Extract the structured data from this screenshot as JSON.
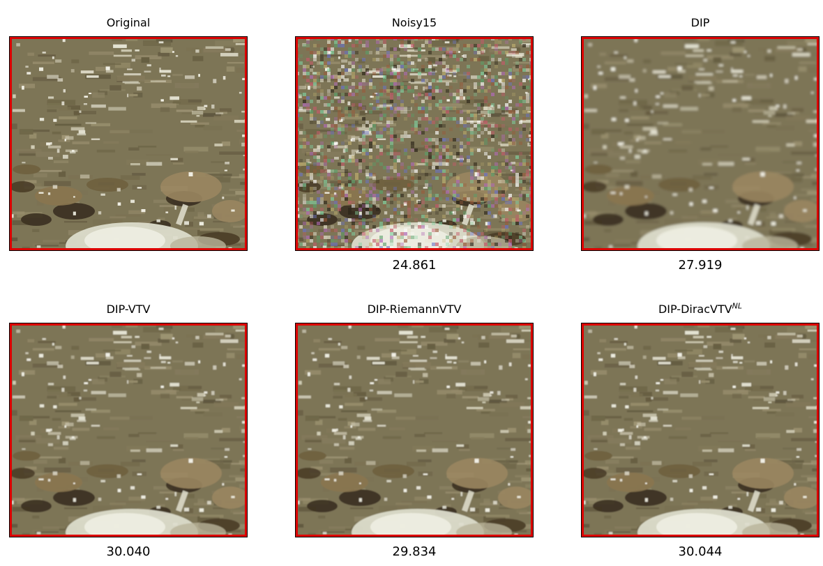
{
  "figure": {
    "panels": [
      {
        "title": "Original",
        "title_superscript": "",
        "psnr": "",
        "noise": "none",
        "blur": "sharp"
      },
      {
        "title": "Noisy15",
        "title_superscript": "",
        "psnr": "24.861",
        "noise": "heavy",
        "blur": "sharp"
      },
      {
        "title": "DIP",
        "title_superscript": "",
        "psnr": "27.919",
        "noise": "none",
        "blur": "smooth"
      },
      {
        "title": "DIP-VTV",
        "title_superscript": "",
        "psnr": "30.040",
        "noise": "none",
        "blur": "slight"
      },
      {
        "title": "DIP-RiemannVTV",
        "title_superscript": "",
        "psnr": "29.834",
        "noise": "none",
        "blur": "slight"
      },
      {
        "title": "DIP-DiracVTV",
        "title_superscript": "NL",
        "psnr": "30.044",
        "noise": "none",
        "blur": "slight"
      }
    ],
    "colors": {
      "border": "#dd0000",
      "frame": "#000000",
      "water_base": "#7d7456",
      "foam": "#e6e4d4",
      "rock_dark": "#3b3020",
      "rock_tan": "#9a8660"
    }
  }
}
